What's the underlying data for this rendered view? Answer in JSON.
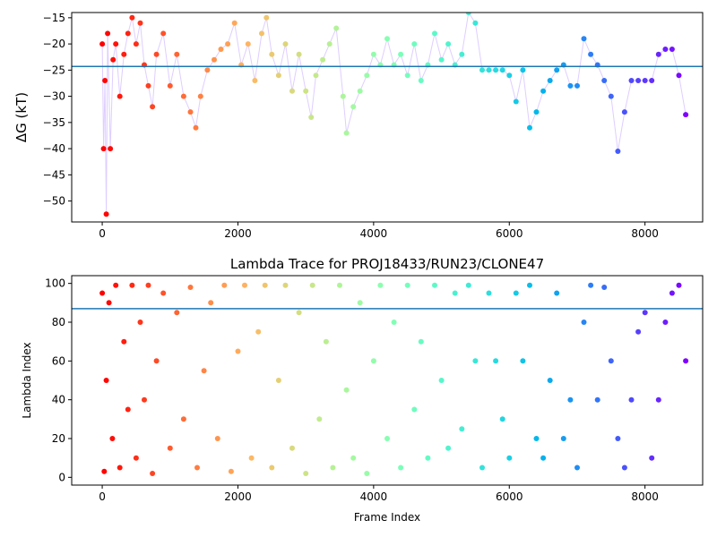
{
  "chart_data": [
    {
      "type": "scatter",
      "title": "",
      "xlabel": "",
      "ylabel": "ΔG (kT)",
      "xlim": [
        -450,
        8850
      ],
      "ylim": [
        -54,
        -14
      ],
      "xticks": [
        0,
        2000,
        4000,
        6000,
        8000
      ],
      "xtick_labels": [
        "0",
        "2000",
        "4000",
        "6000",
        "8000"
      ],
      "yticks": [
        -50,
        -45,
        -40,
        -35,
        -30,
        -25,
        -20,
        -15
      ],
      "ytick_labels": [
        "−50",
        "−45",
        "−40",
        "−35",
        "−30",
        "−25",
        "−20",
        "−15"
      ],
      "hline": -24.3,
      "hline_color": "#1f77b4",
      "colormap": "rainbow (red at frame 0 → violet at final frame)",
      "grid": false,
      "series": [
        {
          "x": [
            0,
            20,
            40,
            60,
            80,
            120,
            160,
            200,
            260,
            320,
            380,
            440,
            500,
            560,
            620,
            680,
            740,
            800,
            900,
            1000,
            1100,
            1200,
            1300,
            1380,
            1450,
            1550,
            1650,
            1750,
            1850,
            1950,
            2050,
            2150,
            2250,
            2350,
            2420,
            2500,
            2600,
            2700,
            2800,
            2900,
            3000,
            3080,
            3150,
            3250,
            3350,
            3450,
            3550,
            3600,
            3700,
            3800,
            3900,
            4000,
            4100,
            4200,
            4300,
            4400,
            4500,
            4600,
            4700,
            4800,
            4900,
            5000,
            5100,
            5200,
            5300,
            5400,
            5500,
            5600,
            5700,
            5800,
            5900,
            6000,
            6100,
            6200,
            6300,
            6400,
            6500,
            6600,
            6700,
            6800,
            6900,
            7000,
            7100,
            7200,
            7300,
            7400,
            7500,
            7600,
            7700,
            7800,
            7900,
            8000,
            8100,
            8200,
            8300,
            8400,
            8500,
            8600
          ],
          "y": [
            -20,
            -40,
            -27,
            -52.5,
            -18,
            -40,
            -23,
            -20,
            -30,
            -22,
            -18,
            -15,
            -20,
            -16,
            -24,
            -28,
            -32,
            -22,
            -18,
            -28,
            -22,
            -30,
            -33,
            -36,
            -30,
            -25,
            -23,
            -21,
            -20,
            -16,
            -24,
            -20,
            -27,
            -18,
            -15,
            -22,
            -26,
            -20,
            -29,
            -22,
            -29,
            -34,
            -26,
            -23,
            -20,
            -17,
            -30,
            -37,
            -32,
            -29,
            -26,
            -22,
            -24,
            -19,
            -24,
            -22,
            -26,
            -20,
            -27,
            -24,
            -18,
            -23,
            -20,
            -24,
            -22,
            -14,
            -16,
            -25,
            -25,
            -25,
            -25,
            -26,
            -31,
            -25,
            -36,
            -33,
            -29,
            -27,
            -25,
            -24,
            -28,
            -28,
            -19,
            -22,
            -24,
            -27,
            -30,
            -40.5,
            -33,
            -27,
            -27,
            -27,
            -27,
            -22,
            -21,
            -21,
            -26,
            -33.5
          ]
        }
      ]
    },
    {
      "type": "scatter",
      "title": "Lambda Trace for PROJ18433/RUN23/CLONE47",
      "xlabel": "Frame Index",
      "ylabel": "Lambda Index",
      "xlim": [
        -450,
        8850
      ],
      "ylim": [
        -4,
        104
      ],
      "xticks": [
        0,
        2000,
        4000,
        6000,
        8000
      ],
      "xtick_labels": [
        "0",
        "2000",
        "4000",
        "6000",
        "8000"
      ],
      "yticks": [
        0,
        20,
        40,
        60,
        80,
        100
      ],
      "ytick_labels": [
        "0",
        "20",
        "40",
        "60",
        "80",
        "100"
      ],
      "hline": 87,
      "hline_color": "#1f77b4",
      "colormap": "rainbow (red at frame 0 → violet at final frame)",
      "grid": false,
      "series": [
        {
          "x": [
            0,
            30,
            60,
            100,
            150,
            200,
            260,
            320,
            380,
            440,
            500,
            560,
            620,
            680,
            740,
            800,
            900,
            1000,
            1100,
            1200,
            1300,
            1400,
            1500,
            1600,
            1700,
            1800,
            1900,
            2000,
            2100,
            2200,
            2300,
            2400,
            2500,
            2600,
            2700,
            2800,
            2900,
            3000,
            3100,
            3200,
            3300,
            3400,
            3500,
            3600,
            3700,
            3800,
            3900,
            4000,
            4100,
            4200,
            4300,
            4400,
            4500,
            4600,
            4700,
            4800,
            4900,
            5000,
            5100,
            5200,
            5300,
            5400,
            5500,
            5600,
            5700,
            5800,
            5900,
            6000,
            6100,
            6200,
            6300,
            6400,
            6500,
            6600,
            6700,
            6800,
            6900,
            7000,
            7100,
            7200,
            7300,
            7400,
            7500,
            7600,
            7700,
            7800,
            7900,
            8000,
            8100,
            8200,
            8300,
            8400,
            8500,
            8600
          ],
          "y": [
            95,
            3,
            50,
            90,
            20,
            99,
            5,
            70,
            35,
            99,
            10,
            80,
            40,
            99,
            2,
            60,
            95,
            15,
            85,
            30,
            98,
            5,
            55,
            90,
            20,
            99,
            3,
            65,
            99,
            10,
            75,
            99,
            5,
            50,
            99,
            15,
            85,
            2,
            99,
            30,
            70,
            5,
            99,
            45,
            10,
            90,
            2,
            60,
            99,
            20,
            80,
            5,
            99,
            35,
            70,
            10,
            99,
            50,
            15,
            95,
            25,
            99,
            60,
            5,
            95,
            60,
            30,
            10,
            95,
            60,
            99,
            20,
            10,
            50,
            95,
            20,
            40,
            5,
            80,
            99,
            40,
            98,
            60,
            20,
            5,
            40,
            75,
            85,
            10,
            40,
            80,
            95,
            99,
            60
          ]
        }
      ]
    }
  ]
}
